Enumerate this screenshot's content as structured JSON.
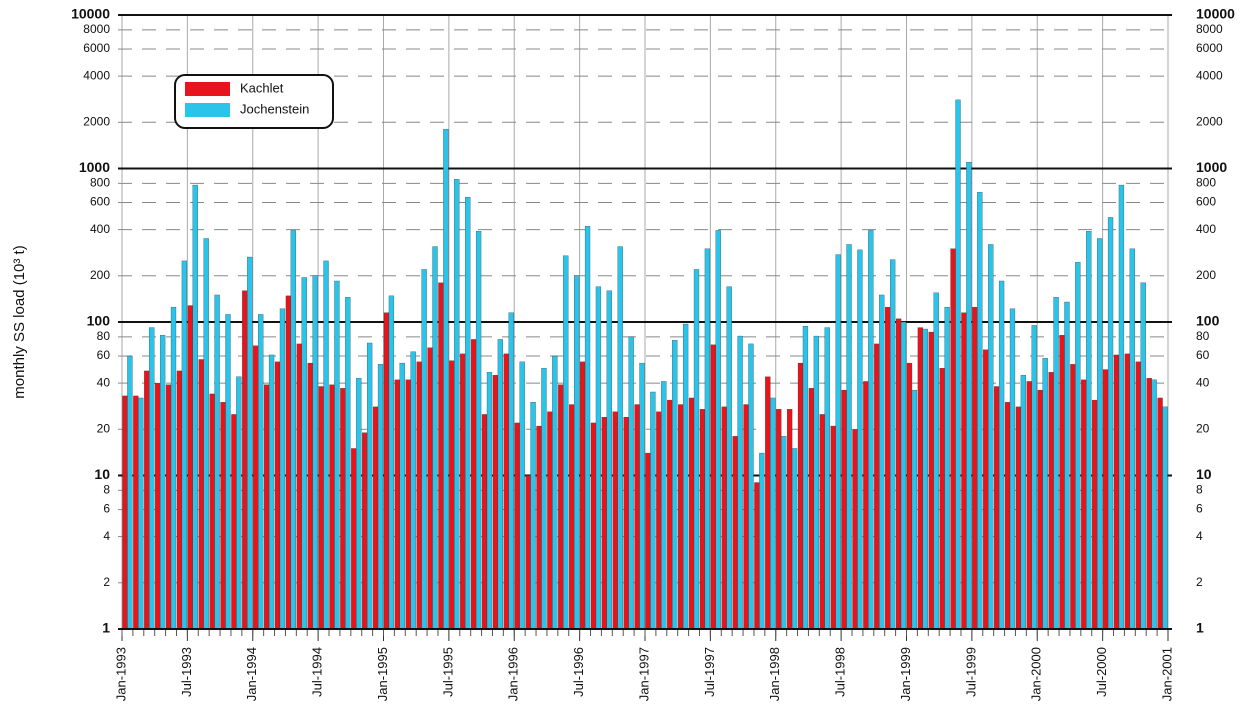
{
  "chart_data": {
    "type": "bar",
    "yscale": "log",
    "grid": true,
    "legend": "upper left",
    "y_label": "monthly SS load (10³ t)",
    "x": [
      "1993-01",
      "1993-02",
      "1993-03",
      "1993-04",
      "1993-05",
      "1993-06",
      "1993-07",
      "1993-08",
      "1993-09",
      "1993-10",
      "1993-11",
      "1993-12",
      "1994-01",
      "1994-02",
      "1994-03",
      "1994-04",
      "1994-05",
      "1994-06",
      "1994-07",
      "1994-08",
      "1994-09",
      "1994-10",
      "1994-11",
      "1994-12",
      "1995-01",
      "1995-02",
      "1995-03",
      "1995-04",
      "1995-05",
      "1995-06",
      "1995-07",
      "1995-08",
      "1995-09",
      "1995-10",
      "1995-11",
      "1995-12",
      "1996-01",
      "1996-02",
      "1996-03",
      "1996-04",
      "1996-05",
      "1996-06",
      "1996-07",
      "1996-08",
      "1996-09",
      "1996-10",
      "1996-11",
      "1996-12",
      "1997-01",
      "1997-02",
      "1997-03",
      "1997-04",
      "1997-05",
      "1997-06",
      "1997-07",
      "1997-08",
      "1997-09",
      "1997-10",
      "1997-11",
      "1997-12",
      "1998-01",
      "1998-02",
      "1998-03",
      "1998-04",
      "1998-05",
      "1998-06",
      "1998-07",
      "1998-08",
      "1998-09",
      "1998-10",
      "1998-11",
      "1998-12",
      "1999-01",
      "1999-02",
      "1999-03",
      "1999-04",
      "1999-05",
      "1999-06",
      "1999-07",
      "1999-08",
      "1999-09",
      "1999-10",
      "1999-11",
      "1999-12",
      "2000-01",
      "2000-02",
      "2000-03",
      "2000-04",
      "2000-05",
      "2000-06",
      "2000-07",
      "2000-08",
      "2000-09",
      "2000-10",
      "2000-11",
      "2000-12"
    ],
    "series": [
      {
        "name": "Kachlet",
        "color": "#e8141b",
        "values": [
          33,
          33,
          48,
          40,
          39,
          48,
          128,
          57,
          34,
          30,
          25,
          160,
          70,
          39,
          55,
          148,
          72,
          54,
          38,
          39,
          37,
          15,
          19,
          28,
          115,
          42,
          42,
          55,
          68,
          180,
          56,
          62,
          77,
          25,
          45,
          62,
          22,
          10,
          21,
          26,
          39,
          29,
          55,
          22,
          24,
          26,
          24,
          29,
          14,
          26,
          31,
          29,
          32,
          27,
          71,
          28,
          18,
          29,
          9,
          44,
          27,
          27,
          54,
          37,
          25,
          21,
          36,
          20,
          41,
          72,
          125,
          105,
          54,
          92,
          86,
          50,
          300,
          115,
          125,
          66,
          38,
          30,
          28,
          41,
          36,
          47,
          82,
          53,
          42,
          31,
          49,
          61,
          62,
          55,
          43,
          32
        ]
      },
      {
        "name": "Jochenstein",
        "color": "#2ac4ea",
        "values": [
          60,
          32,
          92,
          82,
          125,
          250,
          780,
          350,
          150,
          112,
          44,
          265,
          112,
          61,
          122,
          395,
          195,
          200,
          250,
          185,
          145,
          43,
          73,
          53,
          148,
          54,
          64,
          220,
          310,
          1800,
          850,
          650,
          390,
          47,
          77,
          115,
          55,
          30,
          50,
          60,
          270,
          200,
          420,
          170,
          160,
          310,
          80,
          54,
          35,
          41,
          76,
          97,
          220,
          300,
          395,
          170,
          81,
          72,
          14,
          32,
          18,
          15,
          94,
          81,
          92,
          275,
          320,
          295,
          395,
          150,
          255,
          100,
          36,
          90,
          155,
          125,
          2800,
          1100,
          700,
          320,
          185,
          122,
          45,
          95,
          58,
          145,
          135,
          245,
          390,
          350,
          480,
          780,
          300,
          180,
          42,
          28
        ]
      }
    ],
    "xlim": [
      "1993-01",
      "2001-01"
    ],
    "xticks": [
      {
        "value": "1993-01",
        "label": "Jan-1993"
      },
      {
        "value": "1993-07",
        "label": "Jul-1993"
      },
      {
        "value": "1994-01",
        "label": "Jan-1994"
      },
      {
        "value": "1994-07",
        "label": "Jul-1994"
      },
      {
        "value": "1995-01",
        "label": "Jan-1995"
      },
      {
        "value": "1995-07",
        "label": "Jul-1995"
      },
      {
        "value": "1996-01",
        "label": "Jan-1996"
      },
      {
        "value": "1996-07",
        "label": "Jul-1996"
      },
      {
        "value": "1997-01",
        "label": "Jan-1997"
      },
      {
        "value": "1997-07",
        "label": "Jul-1997"
      },
      {
        "value": "1998-01",
        "label": "Jan-1998"
      },
      {
        "value": "1998-07",
        "label": "Jul-1998"
      },
      {
        "value": "1999-01",
        "label": "Jan-1999"
      },
      {
        "value": "1999-07",
        "label": "Jul-1999"
      },
      {
        "value": "2000-01",
        "label": "Jan-2000"
      },
      {
        "value": "2000-07",
        "label": "Jul-2000"
      },
      {
        "value": "2001-01",
        "label": "Jan-2001"
      }
    ],
    "ylim": [
      1,
      10000
    ],
    "yticks": [
      1,
      2,
      4,
      6,
      8,
      10,
      20,
      40,
      60,
      80,
      100,
      200,
      400,
      600,
      800,
      1000,
      2000,
      4000,
      6000,
      8000,
      10000
    ]
  }
}
